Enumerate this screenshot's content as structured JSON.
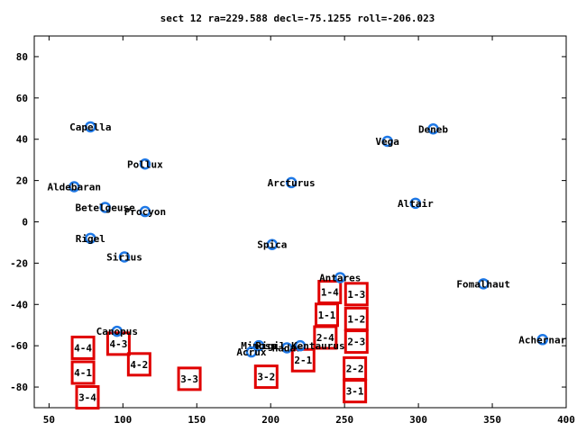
{
  "chart_data": {
    "type": "scatter",
    "title": "sect 12 ra=229.588 decl=-75.1255 roll=-206.023",
    "xlabel": "",
    "ylabel": "",
    "xlim": [
      40,
      400
    ],
    "ylim": [
      -90,
      90
    ],
    "x_ticks": [
      50,
      100,
      150,
      200,
      250,
      300,
      350,
      400
    ],
    "y_ticks": [
      -80,
      -60,
      -40,
      -20,
      0,
      20,
      40,
      60,
      80
    ],
    "grid": false,
    "colors": {
      "star_marker": "#1e78e6",
      "box": "#e00000",
      "axis": "#000000"
    },
    "stars": [
      {
        "name": "Capella",
        "x": 78,
        "y": 46
      },
      {
        "name": "Pollux",
        "x": 115,
        "y": 28
      },
      {
        "name": "Aldebaran",
        "x": 67,
        "y": 17
      },
      {
        "name": "Betelgeuse",
        "x": 88,
        "y": 7
      },
      {
        "name": "Procyon",
        "x": 115,
        "y": 5
      },
      {
        "name": "Rigel",
        "x": 78,
        "y": -8
      },
      {
        "name": "Sirius",
        "x": 101,
        "y": -17
      },
      {
        "name": "Canopus",
        "x": 96,
        "y": -53
      },
      {
        "name": "Arcturus",
        "x": 214,
        "y": 19
      },
      {
        "name": "Spica",
        "x": 201,
        "y": -11
      },
      {
        "name": "Antares",
        "x": 247,
        "y": -27
      },
      {
        "name": "Mimosa",
        "x": 192,
        "y": -60
      },
      {
        "name": "Acrux",
        "x": 187,
        "y": -63
      },
      {
        "name": "Hadar",
        "x": 211,
        "y": -61
      },
      {
        "name": "Rigil Kentaurus",
        "x": 220,
        "y": -60
      },
      {
        "name": "Vega",
        "x": 279,
        "y": 39
      },
      {
        "name": "Deneb",
        "x": 310,
        "y": 45
      },
      {
        "name": "Altair",
        "x": 298,
        "y": 9
      },
      {
        "name": "Fomalhaut",
        "x": 344,
        "y": -30
      },
      {
        "name": "Achernar",
        "x": 384,
        "y": -57
      }
    ],
    "boxes": [
      {
        "label": "1-4",
        "x": 240,
        "y": -34
      },
      {
        "label": "1-3",
        "x": 258,
        "y": -35
      },
      {
        "label": "1-1",
        "x": 238,
        "y": -45
      },
      {
        "label": "1-2",
        "x": 258,
        "y": -47
      },
      {
        "label": "2-4",
        "x": 237,
        "y": -56
      },
      {
        "name": "",
        "label": "2-3",
        "x": 258,
        "y": -58
      },
      {
        "label": "2-1",
        "x": 222,
        "y": -67
      },
      {
        "label": "2-2",
        "x": 257,
        "y": -71
      },
      {
        "label": "3-1",
        "x": 257,
        "y": -82
      },
      {
        "label": "3-2",
        "x": 197,
        "y": -75
      },
      {
        "label": "3-3",
        "x": 145,
        "y": -76
      },
      {
        "label": "4-4",
        "x": 73,
        "y": -61
      },
      {
        "label": "4-3",
        "x": 97,
        "y": -59
      },
      {
        "label": "4-1",
        "x": 73,
        "y": -73
      },
      {
        "label": "4-2",
        "x": 111,
        "y": -69
      },
      {
        "label": "3-4",
        "x": 76,
        "y": -85
      }
    ]
  }
}
